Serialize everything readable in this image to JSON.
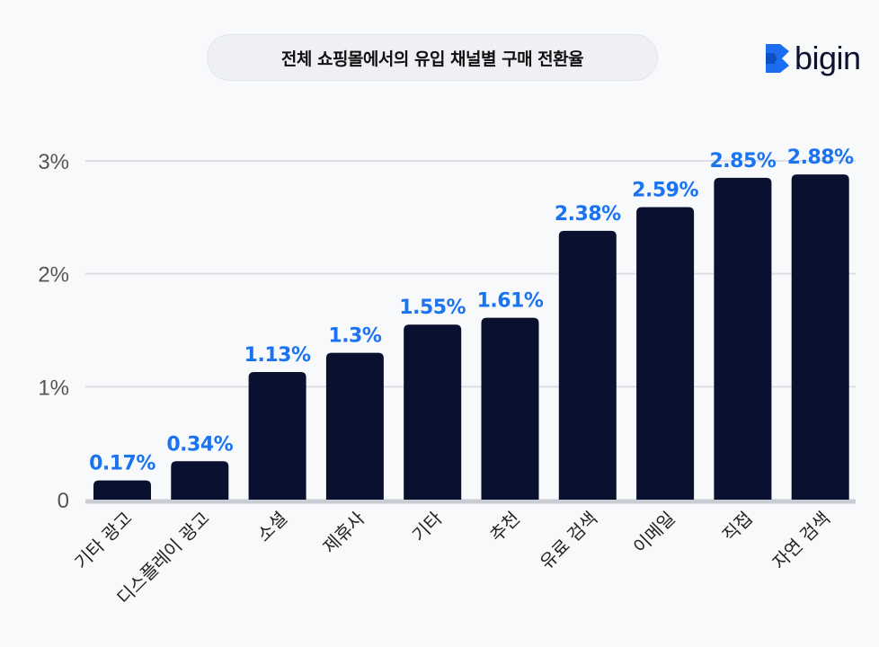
{
  "logo": {
    "text": "bigin",
    "brand_color": "#1a6cf0"
  },
  "chart_data": {
    "type": "bar",
    "title": "전체 쇼핑몰에서의 유입 채널별 구매 전환율",
    "categories": [
      "기타 광고",
      "디스플레이 광고",
      "소셜",
      "제휴사",
      "기타",
      "추천",
      "유료 검색",
      "이메일",
      "직접",
      "자연 검색"
    ],
    "values": [
      0.17,
      0.34,
      1.13,
      1.3,
      1.55,
      1.61,
      2.38,
      2.59,
      2.85,
      2.88
    ],
    "data_labels": [
      "0.17%",
      "0.34%",
      "1.13%",
      "1.3%",
      "1.55%",
      "1.61%",
      "2.38%",
      "2.59%",
      "2.85%",
      "2.88%"
    ],
    "yticks": [
      0,
      1,
      2,
      3
    ],
    "ytick_labels": [
      "0",
      "1%",
      "2%",
      "3%"
    ],
    "ylim": [
      0,
      3
    ],
    "xlabel": "",
    "ylabel": "",
    "grid": true,
    "bar_color": "#0a1030",
    "label_color": "#1a73f0"
  }
}
